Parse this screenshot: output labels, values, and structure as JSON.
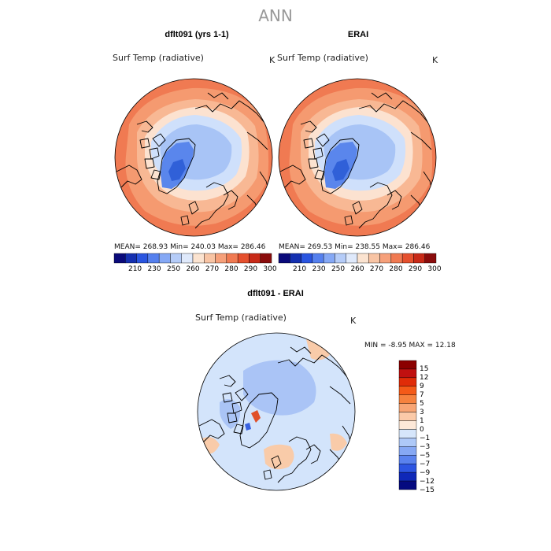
{
  "page": {
    "title": "ANN"
  },
  "panels": [
    {
      "title": "dflt091 (yrs 1-1)",
      "variable": "Surf Temp (radiative)",
      "unit": "K",
      "stats": "MEAN=  268.93   Min=  240.03   Max=  286.46"
    },
    {
      "title": "ERAI",
      "variable": "Surf Temp (radiative)",
      "unit": "K",
      "stats": "MEAN=  269.53   Min=  238.55   Max=  286.46"
    },
    {
      "title": "dflt091 - ERAI",
      "variable": "Surf Temp (radiative)",
      "unit": "K",
      "stats": "MIN =    -8.95  MAX =   12.18"
    }
  ],
  "colorbar_abs": {
    "ticks": [
      "210",
      "230",
      "250",
      "260",
      "270",
      "280",
      "290",
      "300"
    ],
    "colors": [
      "#0a0a7a",
      "#1530b0",
      "#2a55e0",
      "#5580ee",
      "#85a8f5",
      "#b5ccf8",
      "#dfe9fb",
      "#fbe3d0",
      "#f8c4a4",
      "#f6a07a",
      "#f07a52",
      "#e5502e",
      "#c82a18",
      "#8a0c0c"
    ]
  },
  "colorbar_diff": {
    "ticks": [
      "15",
      "12",
      "9",
      "7",
      "5",
      "3",
      "1",
      "0",
      "−1",
      "−3",
      "−5",
      "−7",
      "−9",
      "−12",
      "−15"
    ],
    "colors": [
      "#8b0000",
      "#c01010",
      "#e02c08",
      "#f45a18",
      "#f6823e",
      "#f8a574",
      "#fbcaa8",
      "#fde8d8",
      "#d6e6fb",
      "#aec9f8",
      "#86a8f4",
      "#5a82ee",
      "#2d55e2",
      "#0f28b8",
      "#050a80"
    ]
  },
  "palette": {
    "warm_outer": "#f07a52",
    "warm_mid": "#f8b894",
    "warm_light": "#fce2d0",
    "cool_light": "#cfe0fb",
    "cool_mid": "#a8c4f6",
    "cool_dark": "#5a86ec",
    "cool_deep": "#3060d8",
    "diff_neutral": "#d3e4fb",
    "diff_pos": "#f9cba9",
    "diff_neg": "#aac4f6",
    "coast": "#000000"
  }
}
